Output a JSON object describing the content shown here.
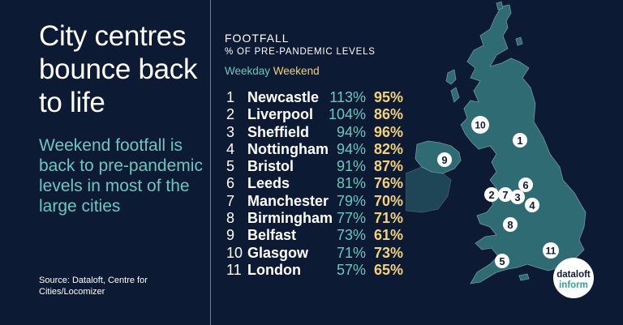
{
  "title": "City centres bounce back to life",
  "subtitle": "Weekend footfall is back to pre-pandemic levels in most of the large cities",
  "source": "Source: Dataloft, Centre for Cities/Locomizer",
  "legend": {
    "heading": "FOOTFALL",
    "subheading": "% OF PRE-PANDEMIC LEVELS",
    "weekday": "Weekday",
    "weekend": "Weekend"
  },
  "colors": {
    "background": "#0c1a33",
    "weekday": "#6cc7c0",
    "weekend": "#f2d27a",
    "map": "#2f6b73"
  },
  "rows": [
    {
      "rank": "1",
      "city": "Newcastle",
      "weekday": "113%",
      "weekend": "95%"
    },
    {
      "rank": "2",
      "city": "Liverpool",
      "weekday": "104%",
      "weekend": "86%"
    },
    {
      "rank": "3",
      "city": "Sheffield",
      "weekday": "94%",
      "weekend": "96%"
    },
    {
      "rank": "4",
      "city": "Nottingham",
      "weekday": "94%",
      "weekend": "82%"
    },
    {
      "rank": "5",
      "city": "Bristol",
      "weekday": "91%",
      "weekend": "87%"
    },
    {
      "rank": "6",
      "city": "Leeds",
      "weekday": "81%",
      "weekend": "76%"
    },
    {
      "rank": "7",
      "city": "Manchester",
      "weekday": "79%",
      "weekend": "70%"
    },
    {
      "rank": "8",
      "city": "Birmingham",
      "weekday": "77%",
      "weekend": "71%"
    },
    {
      "rank": "9",
      "city": "Belfast",
      "weekday": "73%",
      "weekend": "61%"
    },
    {
      "rank": "10",
      "city": "Glasgow",
      "weekday": "71%",
      "weekend": "73%"
    },
    {
      "rank": "11",
      "city": "London",
      "weekday": "57%",
      "weekend": "65%"
    }
  ],
  "map_markers": [
    "1",
    "2",
    "7",
    "3",
    "6",
    "4",
    "8",
    "5",
    "9",
    "10",
    "11"
  ],
  "logo": {
    "line1": "dataloft",
    "line2": "inform"
  }
}
